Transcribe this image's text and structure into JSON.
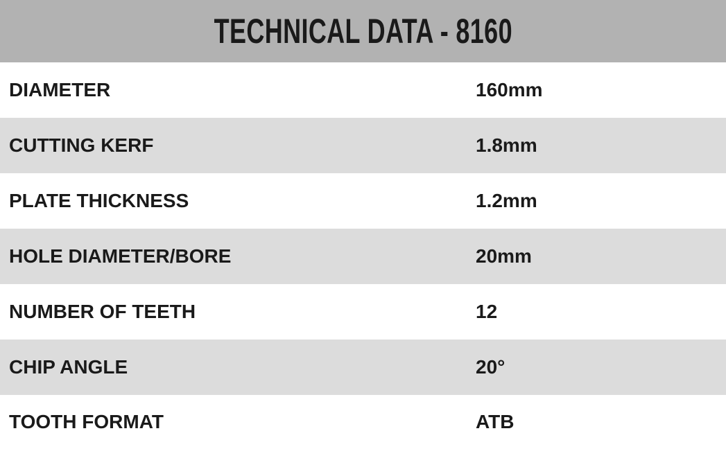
{
  "title": "TECHNICAL DATA - 8160",
  "rows": [
    {
      "label": "DIAMETER",
      "value": "160mm"
    },
    {
      "label": "CUTTING KERF",
      "value": "1.8mm"
    },
    {
      "label": "PLATE THICKNESS",
      "value": "1.2mm"
    },
    {
      "label": "HOLE DIAMETER/BORE",
      "value": "20mm"
    },
    {
      "label": "NUMBER OF TEETH",
      "value": "12"
    },
    {
      "label": "CHIP ANGLE",
      "value": "20°"
    },
    {
      "label": "TOOTH FORMAT",
      "value": "ATB"
    }
  ],
  "colors": {
    "header_bg": "#b2b2b2",
    "row_alt_bg": "#dcdcdc",
    "text": "#1a1a1a"
  }
}
